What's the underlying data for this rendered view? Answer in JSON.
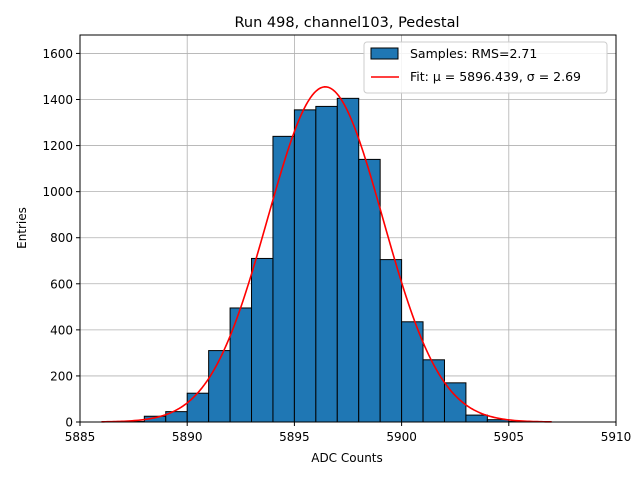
{
  "chart_data": {
    "type": "bar",
    "title": "Run 498, channel103, Pedestal",
    "xlabel": "ADC Counts",
    "ylabel": "Entries",
    "xlim": [
      5885,
      5910
    ],
    "ylim": [
      0,
      1680
    ],
    "xticks": [
      "5885",
      "5890",
      "5895",
      "5900",
      "5905",
      "5910"
    ],
    "yticks": [
      "0",
      "200",
      "400",
      "600",
      "800",
      "1000",
      "1200",
      "1400",
      "1600"
    ],
    "grid": true,
    "legend_position": "top-right",
    "histogram": {
      "name": "Samples: RMS=2.71",
      "color": "#1f77b4",
      "edgecolor": "#000000",
      "bin_width": 1,
      "bin_starts": [
        5887,
        5888,
        5889,
        5890,
        5891,
        5892,
        5893,
        5894,
        5895,
        5896,
        5897,
        5898,
        5899,
        5900,
        5901,
        5902,
        5903,
        5904,
        5905
      ],
      "values": [
        2,
        25,
        45,
        125,
        310,
        495,
        710,
        1240,
        1355,
        1370,
        1405,
        1140,
        705,
        435,
        270,
        170,
        30,
        10,
        2
      ]
    },
    "fit": {
      "name": "Fit: μ = 5896.439, σ = 2.69",
      "color": "#ff0000",
      "mu": 5896.439,
      "sigma": 2.69,
      "amplitude": 1455,
      "x_range": [
        5886,
        5907
      ]
    }
  }
}
